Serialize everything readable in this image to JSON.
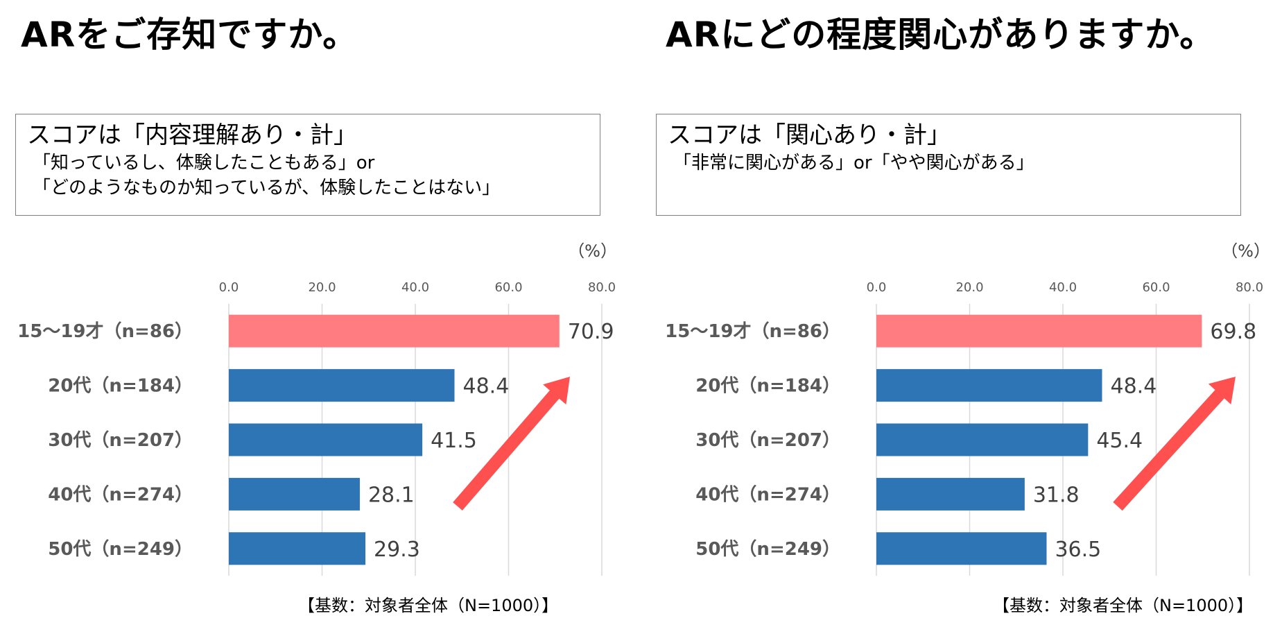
{
  "colors": {
    "highlight_bar": "#ff7c80",
    "bar": "#2e75b6",
    "arrow": "#ff5050",
    "grid": "#d9d9d9",
    "category_text": "#595959",
    "value_text": "#404040",
    "tick_text": "#595959"
  },
  "left": {
    "title": "ARをご存知ですか。",
    "note": {
      "head": "スコアは「内容理解あり・計」",
      "lines": [
        "「知っているし、体験したこともある」or",
        "「どのようなものか知っているが、体験したことはない」"
      ]
    },
    "unit": "（%）",
    "base": "【基数：対象者全体（N=1000）】"
  },
  "right": {
    "title": "ARにどの程度関心がありますか。",
    "note": {
      "head": "スコアは「関心あり・計」",
      "lines": [
        "「非常に関心がある」or「やや関心がある」"
      ]
    },
    "unit": "（%）",
    "base": "【基数：対象者全体（N=1000）】"
  },
  "chart_data": [
    {
      "type": "bar",
      "orientation": "horizontal",
      "title": "ARをご存知ですか。",
      "categories": [
        "15〜19才（n=86）",
        "20代（n=184）",
        "30代（n=207）",
        "40代（n=274）",
        "50代（n=249）"
      ],
      "values": [
        70.9,
        48.4,
        41.5,
        28.1,
        29.3
      ],
      "value_labels": [
        "70.9",
        "48.4",
        "41.5",
        "28.1",
        "29.3"
      ],
      "highlight_index": 0,
      "xlim": [
        0,
        80
      ],
      "xticks": [
        "0.0",
        "20.0",
        "40.0",
        "60.0",
        "80.0"
      ],
      "grid": true,
      "unit": "（%）",
      "annotation": "upward-arrow"
    },
    {
      "type": "bar",
      "orientation": "horizontal",
      "title": "ARにどの程度関心がありますか。",
      "categories": [
        "15〜19才（n=86）",
        "20代（n=184）",
        "30代（n=207）",
        "40代（n=274）",
        "50代（n=249）"
      ],
      "values": [
        69.8,
        48.4,
        45.4,
        31.8,
        36.5
      ],
      "value_labels": [
        "69.8",
        "48.4",
        "45.4",
        "31.8",
        "36.5"
      ],
      "highlight_index": 0,
      "xlim": [
        0,
        80
      ],
      "xticks": [
        "0.0",
        "20.0",
        "40.0",
        "60.0",
        "80.0"
      ],
      "grid": true,
      "unit": "（%）",
      "annotation": "upward-arrow"
    }
  ]
}
